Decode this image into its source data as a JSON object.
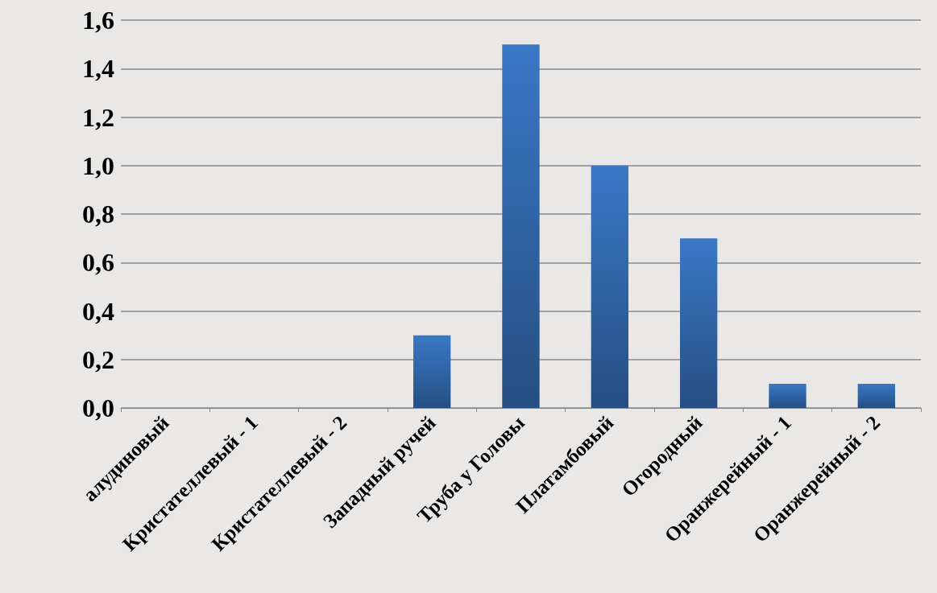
{
  "chart_data": {
    "type": "bar",
    "categories": [
      "алудиновый",
      "Кристателлевый - 1",
      "Кристателлевый - 2",
      "Западный ручей",
      "Труба у Головы",
      "Платамбовый",
      "Огородный",
      "Оранжерейный - 1",
      "Оранжерейный - 2"
    ],
    "values": [
      0,
      0,
      0,
      0.3,
      1.5,
      1.0,
      0.7,
      0.1,
      0.1
    ],
    "color": "#3a78c6",
    "ylim": [
      0,
      1.6
    ],
    "yticks": [
      {
        "value": 0,
        "label": "0,0"
      },
      {
        "value": 0.2,
        "label": "0,2"
      },
      {
        "value": 0.4,
        "label": "0,4"
      },
      {
        "value": 0.6,
        "label": "0,6"
      },
      {
        "value": 0.8,
        "label": "0,8"
      },
      {
        "value": 1.0,
        "label": "1,0"
      },
      {
        "value": 1.2,
        "label": "1,2"
      },
      {
        "value": 1.4,
        "label": "1,4"
      },
      {
        "value": 1.6,
        "label": "1,6"
      }
    ],
    "grid": "y"
  }
}
